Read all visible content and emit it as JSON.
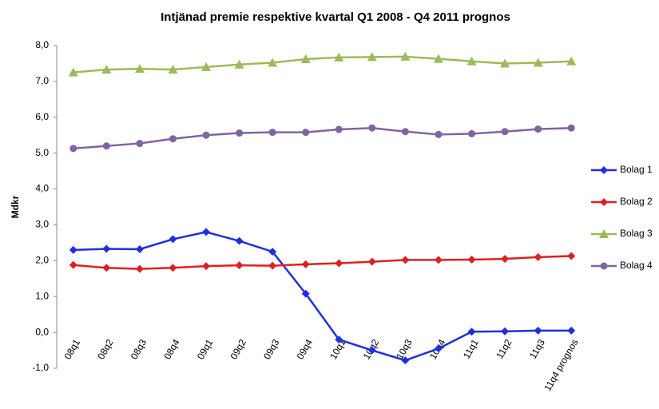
{
  "chart_data": {
    "type": "line",
    "title": "Intjänad premie respektive kvartal Q1 2008 - Q4 2011 prognos",
    "y_label": "Mdkr",
    "categories": [
      "08q1",
      "08q2",
      "08q3",
      "08q4",
      "09q1",
      "09q2",
      "09q3",
      "09q4",
      "10q1",
      "10q2",
      "10q3",
      "10q4",
      "11q1",
      "11q2",
      "11q3",
      "11q4 prognos"
    ],
    "series": [
      {
        "name": "Bolag 1",
        "color": "#1f2fe0",
        "marker": "diamond",
        "values": [
          2.3,
          2.33,
          2.32,
          2.6,
          2.8,
          2.55,
          2.25,
          1.08,
          -0.2,
          -0.5,
          -0.78,
          -0.45,
          0.02,
          0.03,
          0.05,
          0.05
        ]
      },
      {
        "name": "Bolag 2",
        "color": "#e02020",
        "marker": "diamond",
        "values": [
          1.88,
          1.8,
          1.77,
          1.8,
          1.85,
          1.87,
          1.86,
          1.9,
          1.93,
          1.97,
          2.02,
          2.02,
          2.03,
          2.05,
          2.1,
          2.13
        ]
      },
      {
        "name": "Bolag 3",
        "color": "#9bbb59",
        "marker": "triangle",
        "values": [
          7.25,
          7.33,
          7.35,
          7.33,
          7.4,
          7.47,
          7.52,
          7.62,
          7.67,
          7.68,
          7.69,
          7.63,
          7.56,
          7.5,
          7.52,
          7.56
        ]
      },
      {
        "name": "Bolag 4",
        "color": "#8064a2",
        "marker": "circle",
        "values": [
          5.13,
          5.2,
          5.27,
          5.4,
          5.5,
          5.56,
          5.58,
          5.58,
          5.66,
          5.7,
          5.6,
          5.52,
          5.54,
          5.6,
          5.67,
          5.7
        ]
      }
    ],
    "ylim": [
      -1,
      8
    ],
    "yticks": [
      {
        "value": -1,
        "label": "-1,0"
      },
      {
        "value": 0,
        "label": "0,0"
      },
      {
        "value": 1,
        "label": "1,0"
      },
      {
        "value": 2,
        "label": "2,0"
      },
      {
        "value": 3,
        "label": "3,0"
      },
      {
        "value": 4,
        "label": "4,0"
      },
      {
        "value": 5,
        "label": "5,0"
      },
      {
        "value": 6,
        "label": "6,0"
      },
      {
        "value": 7,
        "label": "7,0"
      },
      {
        "value": 8,
        "label": "8,0"
      }
    ],
    "grid": false,
    "legend": "right"
  }
}
